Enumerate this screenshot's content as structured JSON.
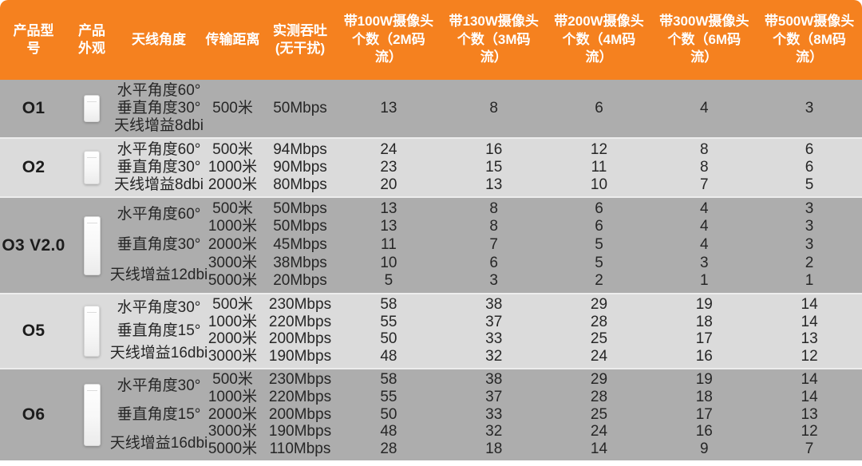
{
  "header": {
    "columns_display": [
      "产品型\n号",
      "产品\n外观",
      "天线角度",
      "传输距离",
      "实测吞吐\n(无干扰)",
      "带100W摄像头\n个数（2M码\n流）",
      "带130W摄像头\n个数（3M码\n流）",
      "带200W摄像头\n个数（4M码\n流）",
      "带300W摄像头\n个数（6M码\n流）",
      "带500W摄像头\n个数（8M码\n流）"
    ]
  },
  "chart_data": {
    "type": "table",
    "title": "",
    "columns": [
      "产品型号",
      "产品外观",
      "天线角度",
      "传输距离",
      "实测吞吐(无干扰)",
      "带100W摄像头个数（2M码流）",
      "带130W摄像头个数（3M码流）",
      "带200W摄像头个数（4M码流）",
      "带300W摄像头个数（6M码流）",
      "带500W摄像头个数（8M码流）"
    ],
    "rows": [
      {
        "model": "O1",
        "appearance": "white-outdoor-cpe-device-photo",
        "antenna": [
          "水平角度60°",
          "垂直角度30°",
          "天线增益8dbi"
        ],
        "sub_rows": [
          {
            "distance": "500米",
            "throughput": "50Mbps",
            "counts": [
              13,
              8,
              6,
              4,
              3
            ]
          }
        ]
      },
      {
        "model": "O2",
        "appearance": "white-outdoor-cpe-device-photo",
        "antenna": [
          "水平角度60°",
          "垂直角度30°",
          "天线增益8dbi"
        ],
        "sub_rows": [
          {
            "distance": "500米",
            "throughput": "94Mbps",
            "counts": [
              24,
              16,
              12,
              8,
              6
            ]
          },
          {
            "distance": "1000米",
            "throughput": "90Mbps",
            "counts": [
              23,
              15,
              11,
              8,
              6
            ]
          },
          {
            "distance": "2000米",
            "throughput": "80Mbps",
            "counts": [
              20,
              13,
              10,
              7,
              5
            ]
          }
        ]
      },
      {
        "model": "O3 V2.0",
        "appearance": "white-outdoor-cpe-device-photo",
        "antenna": [
          "水平角度60°",
          "垂直角度30°",
          "天线增益12dbi"
        ],
        "sub_rows": [
          {
            "distance": "500米",
            "throughput": "50Mbps",
            "counts": [
              13,
              8,
              6,
              4,
              3
            ]
          },
          {
            "distance": "1000米",
            "throughput": "50Mbps",
            "counts": [
              13,
              8,
              6,
              4,
              3
            ]
          },
          {
            "distance": "2000米",
            "throughput": "45Mbps",
            "counts": [
              11,
              7,
              5,
              4,
              3
            ]
          },
          {
            "distance": "3000米",
            "throughput": "38Mbps",
            "counts": [
              10,
              6,
              5,
              3,
              2
            ]
          },
          {
            "distance": "5000米",
            "throughput": "20Mbps",
            "counts": [
              5,
              3,
              2,
              1,
              1
            ]
          }
        ]
      },
      {
        "model": "O5",
        "appearance": "white-outdoor-cpe-device-photo",
        "antenna": [
          "水平角度30°",
          "垂直角度15°",
          "天线增益16dbi"
        ],
        "sub_rows": [
          {
            "distance": "500米",
            "throughput": "230Mbps",
            "counts": [
              58,
              38,
              29,
              19,
              14
            ]
          },
          {
            "distance": "1000米",
            "throughput": "220Mbps",
            "counts": [
              55,
              37,
              28,
              18,
              14
            ]
          },
          {
            "distance": "2000米",
            "throughput": "200Mbps",
            "counts": [
              50,
              33,
              25,
              17,
              13
            ]
          },
          {
            "distance": "3000米",
            "throughput": "190Mbps",
            "counts": [
              48,
              32,
              24,
              16,
              12
            ]
          }
        ]
      },
      {
        "model": "O6",
        "appearance": "white-outdoor-cpe-device-photo",
        "antenna": [
          "水平角度30°",
          "垂直角度15°",
          "天线增益16dbi"
        ],
        "sub_rows": [
          {
            "distance": "500米",
            "throughput": "230Mbps",
            "counts": [
              58,
              38,
              29,
              19,
              14
            ]
          },
          {
            "distance": "1000米",
            "throughput": "220Mbps",
            "counts": [
              55,
              37,
              28,
              18,
              14
            ]
          },
          {
            "distance": "2000米",
            "throughput": "200Mbps",
            "counts": [
              50,
              33,
              25,
              17,
              13
            ]
          },
          {
            "distance": "3000米",
            "throughput": "190Mbps",
            "counts": [
              48,
              32,
              24,
              16,
              12
            ]
          },
          {
            "distance": "5000米",
            "throughput": "110Mbps",
            "counts": [
              28,
              18,
              14,
              9,
              7
            ]
          }
        ]
      }
    ]
  },
  "colors": {
    "header_background": "#F5811F",
    "header_text": "#FFFFFF",
    "row_dark": "#ADADAD",
    "row_light": "#DBDBDB",
    "body_text": "#262626"
  }
}
